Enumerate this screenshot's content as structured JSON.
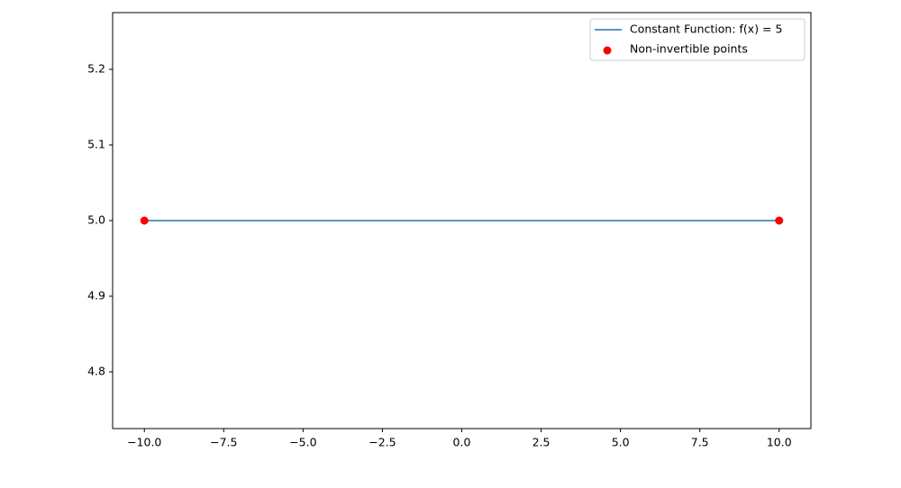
{
  "chart_data": {
    "type": "line",
    "series": [
      {
        "name": "Constant Function: f(x) = 5",
        "type": "line",
        "color": "#1f77b4",
        "x": [
          -10,
          10
        ],
        "values": [
          5,
          5
        ]
      },
      {
        "name": "Non-invertible points",
        "type": "scatter",
        "color": "#ff0000",
        "x": [
          -10,
          10
        ],
        "values": [
          5,
          5
        ]
      }
    ],
    "xlim": [
      -11,
      11
    ],
    "ylim": [
      4.725,
      5.275
    ],
    "xticks": [
      {
        "value": -10,
        "label": "−10.0"
      },
      {
        "value": -7.5,
        "label": "−7.5"
      },
      {
        "value": -5,
        "label": "−5.0"
      },
      {
        "value": -2.5,
        "label": "−2.5"
      },
      {
        "value": 0,
        "label": "0.0"
      },
      {
        "value": 2.5,
        "label": "2.5"
      },
      {
        "value": 5,
        "label": "5.0"
      },
      {
        "value": 7.5,
        "label": "7.5"
      },
      {
        "value": 10,
        "label": "10.0"
      }
    ],
    "yticks": [
      4.8,
      4.9,
      {
        "value": 5,
        "label": "5.0"
      },
      5.1,
      5.2
    ],
    "legend": "upper right",
    "grid": false
  }
}
